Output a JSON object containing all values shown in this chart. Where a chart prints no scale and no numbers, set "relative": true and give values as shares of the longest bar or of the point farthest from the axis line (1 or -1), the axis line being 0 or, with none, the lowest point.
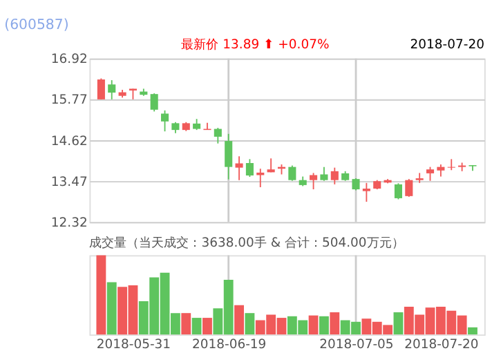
{
  "chart_data": [
    {
      "type": "candlestick",
      "title": "(600587)",
      "annotations": [
        "最新价 13.89 ⬆ +0.07%",
        "2018-07-20"
      ],
      "categories": [
        null,
        null,
        null,
        "2018-05-31",
        null,
        null,
        null,
        null,
        null,
        null,
        null,
        null,
        "2018-06-19",
        null,
        null,
        null,
        null,
        null,
        null,
        null,
        null,
        null,
        null,
        null,
        "2018-07-05",
        null,
        null,
        null,
        null,
        null,
        null,
        null,
        "2018-07-20",
        null,
        null,
        null
      ],
      "ohlc": [
        [
          15.77,
          16.36,
          15.77,
          16.33
        ],
        [
          16.19,
          16.31,
          15.77,
          15.96
        ],
        [
          15.87,
          16.04,
          15.82,
          15.97
        ],
        [
          16.02,
          16.07,
          15.77,
          16.07
        ],
        [
          15.99,
          16.07,
          15.87,
          15.9
        ],
        [
          15.92,
          15.94,
          15.43,
          15.48
        ],
        [
          15.37,
          15.46,
          14.87,
          15.15
        ],
        [
          15.1,
          15.13,
          14.82,
          14.91
        ],
        [
          14.91,
          15.13,
          14.88,
          15.1
        ],
        [
          15.09,
          15.22,
          14.91,
          14.94
        ],
        [
          14.91,
          15.11,
          14.91,
          14.94
        ],
        [
          14.94,
          14.97,
          14.53,
          14.72
        ],
        [
          14.6,
          14.8,
          13.52,
          13.87
        ],
        [
          13.85,
          14.17,
          13.5,
          13.97
        ],
        [
          13.98,
          14.09,
          13.59,
          13.63
        ],
        [
          13.64,
          13.82,
          13.3,
          13.71
        ],
        [
          13.72,
          14.11,
          13.72,
          13.8
        ],
        [
          13.82,
          13.94,
          13.66,
          13.87
        ],
        [
          13.87,
          13.91,
          13.48,
          13.5
        ],
        [
          13.5,
          13.6,
          13.33,
          13.36
        ],
        [
          13.5,
          13.7,
          13.24,
          13.64
        ],
        [
          13.66,
          13.87,
          13.48,
          13.5
        ],
        [
          13.5,
          13.85,
          13.38,
          13.75
        ],
        [
          13.69,
          13.75,
          13.48,
          13.5
        ],
        [
          13.53,
          13.55,
          13.21,
          13.24
        ],
        [
          13.19,
          13.42,
          12.89,
          13.26
        ],
        [
          13.26,
          13.5,
          13.24,
          13.47
        ],
        [
          13.43,
          13.53,
          13.41,
          13.5
        ],
        [
          13.38,
          13.41,
          12.96,
          12.99
        ],
        [
          13.05,
          13.53,
          13.03,
          13.5
        ],
        [
          13.5,
          13.7,
          13.42,
          13.55
        ],
        [
          13.69,
          13.87,
          13.48,
          13.8
        ],
        [
          13.77,
          13.94,
          13.6,
          13.87
        ],
        [
          13.85,
          14.09,
          13.78,
          13.87
        ],
        [
          13.87,
          13.99,
          13.75,
          13.91
        ],
        [
          13.92,
          13.92,
          13.76,
          13.89
        ]
      ],
      "colors": [
        "#f05a5a",
        "#5ec45e",
        "#f05a5a",
        "#f05a5a",
        "#5ec45e",
        "#5ec45e",
        "#5ec45e",
        "#5ec45e",
        "#f05a5a",
        "#5ec45e",
        "#f05a5a",
        "#5ec45e",
        "#5ec45e",
        "#f05a5a",
        "#5ec45e",
        "#f05a5a",
        "#f05a5a",
        "#f05a5a",
        "#5ec45e",
        "#5ec45e",
        "#f05a5a",
        "#5ec45e",
        "#f05a5a",
        "#5ec45e",
        "#5ec45e",
        "#f05a5a",
        "#f05a5a",
        "#f05a5a",
        "#5ec45e",
        "#f05a5a",
        "#f05a5a",
        "#f05a5a",
        "#f05a5a",
        "#f05a5a",
        "#f05a5a",
        "#5ec45e"
      ],
      "ylim": [
        12.32,
        16.92
      ],
      "yticks": [
        12.32,
        13.47,
        14.62,
        15.77,
        16.92
      ],
      "grid": true,
      "tick_labels": "y"
    },
    {
      "type": "bar",
      "title": "成交量（当天成交：3638.00手 & 合计：504.00万元）",
      "relative": true,
      "grid": "x",
      "categories": [
        null,
        null,
        null,
        "2018-05-31",
        null,
        null,
        null,
        null,
        null,
        null,
        null,
        null,
        "2018-06-19",
        null,
        null,
        null,
        null,
        null,
        null,
        null,
        null,
        null,
        null,
        null,
        "2018-07-05",
        null,
        null,
        null,
        null,
        null,
        null,
        null,
        "2018-07-20",
        null,
        null,
        null
      ],
      "values": [
        1.0,
        0.66,
        0.6,
        0.62,
        0.42,
        0.72,
        0.78,
        0.27,
        0.27,
        0.21,
        0.21,
        0.33,
        0.69,
        0.37,
        0.27,
        0.18,
        0.25,
        0.21,
        0.23,
        0.18,
        0.24,
        0.23,
        0.28,
        0.18,
        0.16,
        0.2,
        0.16,
        0.12,
        0.28,
        0.35,
        0.25,
        0.34,
        0.35,
        0.3,
        0.24,
        0.09
      ],
      "colors": [
        "#f05a5a",
        "#5ec45e",
        "#f05a5a",
        "#f05a5a",
        "#5ec45e",
        "#5ec45e",
        "#5ec45e",
        "#5ec45e",
        "#f05a5a",
        "#5ec45e",
        "#f05a5a",
        "#5ec45e",
        "#5ec45e",
        "#f05a5a",
        "#5ec45e",
        "#f05a5a",
        "#f05a5a",
        "#f05a5a",
        "#5ec45e",
        "#5ec45e",
        "#f05a5a",
        "#5ec45e",
        "#f05a5a",
        "#5ec45e",
        "#5ec45e",
        "#f05a5a",
        "#f05a5a",
        "#f05a5a",
        "#5ec45e",
        "#f05a5a",
        "#f05a5a",
        "#f05a5a",
        "#f05a5a",
        "#f05a5a",
        "#f05a5a",
        "#5ec45e"
      ]
    }
  ]
}
